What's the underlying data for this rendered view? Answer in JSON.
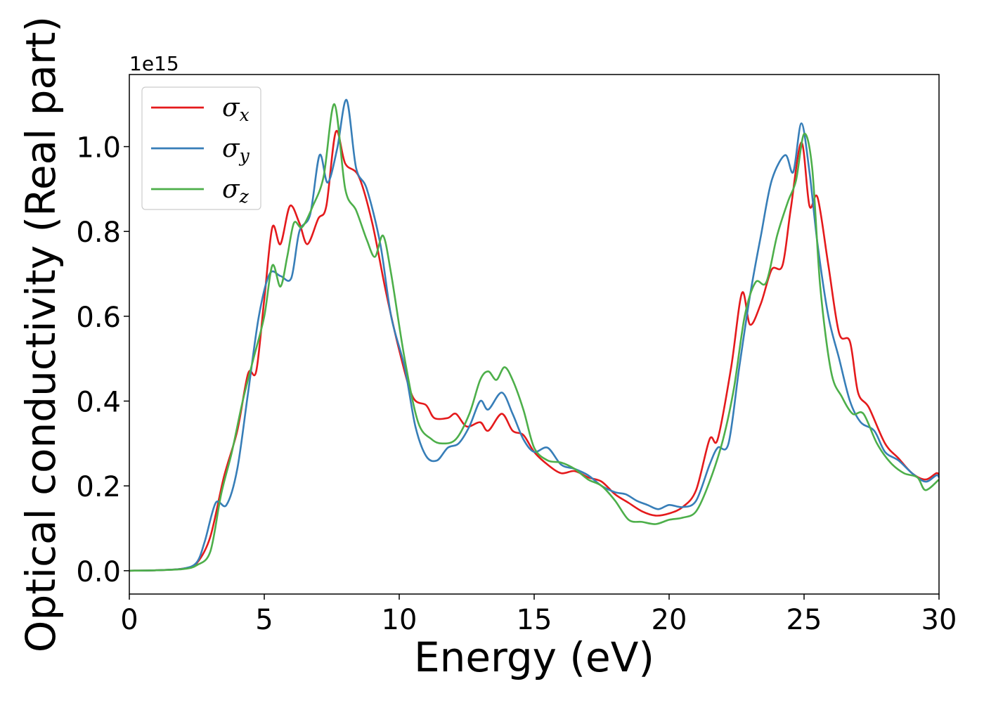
{
  "chart_data": {
    "type": "line",
    "xlabel": "Energy (eV)",
    "ylabel": "Optical conductivity (Real part)",
    "y_offset_label": "1e15",
    "xlim": [
      0,
      30
    ],
    "ylim": [
      -0.055,
      1.17
    ],
    "xticks": [
      0,
      5,
      10,
      15,
      20,
      25,
      30
    ],
    "xtick_labels": [
      "0",
      "5",
      "10",
      "15",
      "20",
      "25",
      "30"
    ],
    "yticks": [
      0.0,
      0.2,
      0.4,
      0.6,
      0.8,
      1.0
    ],
    "ytick_labels": [
      "0.0",
      "0.2",
      "0.4",
      "0.6",
      "0.8",
      "1.0"
    ],
    "grid": false,
    "legend_position": "upper-left",
    "series": [
      {
        "name": "σx",
        "symbol": "σ",
        "subscript": "x",
        "color": "#e41a1c",
        "x": [
          0,
          1,
          2,
          2.5,
          3,
          3.5,
          4,
          4.4,
          4.7,
          5,
          5.3,
          5.6,
          5.95,
          6.3,
          6.6,
          7,
          7.3,
          7.65,
          8,
          8.5,
          9,
          9.5,
          10,
          10.5,
          11,
          11.3,
          11.8,
          12.1,
          12.5,
          13,
          13.3,
          13.8,
          14.2,
          14.6,
          15,
          15.5,
          16,
          16.5,
          17,
          17.5,
          18,
          18.5,
          19,
          19.5,
          20,
          20.5,
          21,
          21.5,
          21.8,
          22.3,
          22.7,
          23,
          23.4,
          23.8,
          24.2,
          24.5,
          24.9,
          25.2,
          25.5,
          25.9,
          26.3,
          26.7,
          27,
          27.4,
          28,
          28.5,
          29,
          29.5,
          29.9,
          30
        ],
        "y": [
          0.0,
          0.001,
          0.005,
          0.018,
          0.08,
          0.22,
          0.33,
          0.465,
          0.47,
          0.64,
          0.81,
          0.77,
          0.86,
          0.82,
          0.77,
          0.83,
          0.86,
          1.035,
          0.96,
          0.93,
          0.82,
          0.66,
          0.52,
          0.41,
          0.39,
          0.36,
          0.36,
          0.37,
          0.34,
          0.35,
          0.33,
          0.37,
          0.33,
          0.32,
          0.28,
          0.25,
          0.23,
          0.235,
          0.22,
          0.21,
          0.18,
          0.16,
          0.14,
          0.13,
          0.135,
          0.15,
          0.19,
          0.31,
          0.31,
          0.48,
          0.655,
          0.58,
          0.63,
          0.71,
          0.72,
          0.85,
          1.01,
          0.86,
          0.88,
          0.72,
          0.56,
          0.54,
          0.42,
          0.385,
          0.3,
          0.265,
          0.23,
          0.215,
          0.23,
          0.225
        ]
      },
      {
        "name": "σy",
        "symbol": "σ",
        "subscript": "y",
        "color": "#377eb8",
        "x": [
          0,
          1,
          2,
          2.5,
          2.8,
          3.2,
          3.6,
          4,
          4.4,
          4.8,
          5.2,
          5.6,
          6,
          6.3,
          6.7,
          7.05,
          7.35,
          7.7,
          8.05,
          8.4,
          8.8,
          9.3,
          9.7,
          10.2,
          10.6,
          11,
          11.4,
          11.8,
          12.2,
          12.6,
          13,
          13.3,
          13.8,
          14.2,
          14.6,
          15,
          15.5,
          16,
          16.5,
          17,
          17.5,
          18,
          18.4,
          18.8,
          19.2,
          19.6,
          20,
          20.5,
          21,
          21.5,
          21.8,
          22.2,
          22.6,
          23,
          23.4,
          23.8,
          24.3,
          24.6,
          24.9,
          25.2,
          25.5,
          25.9,
          26.3,
          26.7,
          27.1,
          27.6,
          28,
          28.5,
          29,
          29.5,
          29.9,
          30
        ],
        "y": [
          0.0,
          0.001,
          0.005,
          0.02,
          0.07,
          0.16,
          0.155,
          0.24,
          0.42,
          0.6,
          0.7,
          0.695,
          0.69,
          0.8,
          0.84,
          0.98,
          0.915,
          0.995,
          1.11,
          0.95,
          0.9,
          0.77,
          0.6,
          0.48,
          0.34,
          0.27,
          0.26,
          0.29,
          0.3,
          0.34,
          0.4,
          0.38,
          0.42,
          0.37,
          0.31,
          0.28,
          0.29,
          0.25,
          0.24,
          0.225,
          0.2,
          0.185,
          0.18,
          0.165,
          0.155,
          0.145,
          0.155,
          0.15,
          0.165,
          0.25,
          0.29,
          0.3,
          0.48,
          0.65,
          0.79,
          0.92,
          0.98,
          0.94,
          1.055,
          0.94,
          0.77,
          0.6,
          0.5,
          0.4,
          0.35,
          0.33,
          0.28,
          0.26,
          0.23,
          0.21,
          0.225,
          0.22
        ]
      },
      {
        "name": "σz",
        "symbol": "σ",
        "subscript": "z",
        "color": "#4daf4a",
        "x": [
          0,
          1,
          2,
          2.5,
          3,
          3.4,
          3.8,
          4.2,
          4.6,
          5,
          5.3,
          5.6,
          5.85,
          6.1,
          6.4,
          6.8,
          7.2,
          7.6,
          8,
          8.4,
          8.8,
          9.1,
          9.4,
          9.7,
          10.2,
          10.7,
          11.2,
          11.6,
          12.1,
          12.6,
          13,
          13.3,
          13.6,
          13.9,
          14.2,
          14.6,
          15,
          15.5,
          16,
          16.5,
          17,
          17.5,
          18,
          18.5,
          19,
          19.5,
          20,
          20.5,
          21,
          21.5,
          22,
          22.4,
          22.8,
          23.2,
          23.6,
          24,
          24.4,
          24.7,
          25,
          25.3,
          25.6,
          26,
          26.4,
          26.8,
          27.2,
          27.7,
          28.2,
          28.7,
          29.2,
          29.5,
          30
        ],
        "y": [
          0.0,
          0.001,
          0.004,
          0.013,
          0.045,
          0.18,
          0.28,
          0.4,
          0.5,
          0.6,
          0.72,
          0.67,
          0.74,
          0.82,
          0.81,
          0.86,
          0.93,
          1.1,
          0.9,
          0.85,
          0.78,
          0.74,
          0.79,
          0.7,
          0.5,
          0.35,
          0.31,
          0.3,
          0.31,
          0.37,
          0.45,
          0.47,
          0.45,
          0.48,
          0.45,
          0.38,
          0.29,
          0.26,
          0.255,
          0.24,
          0.215,
          0.2,
          0.165,
          0.12,
          0.115,
          0.11,
          0.12,
          0.125,
          0.14,
          0.21,
          0.31,
          0.43,
          0.6,
          0.68,
          0.68,
          0.79,
          0.87,
          0.92,
          1.03,
          0.95,
          0.67,
          0.47,
          0.41,
          0.37,
          0.37,
          0.3,
          0.255,
          0.23,
          0.22,
          0.19,
          0.215
        ]
      }
    ]
  }
}
